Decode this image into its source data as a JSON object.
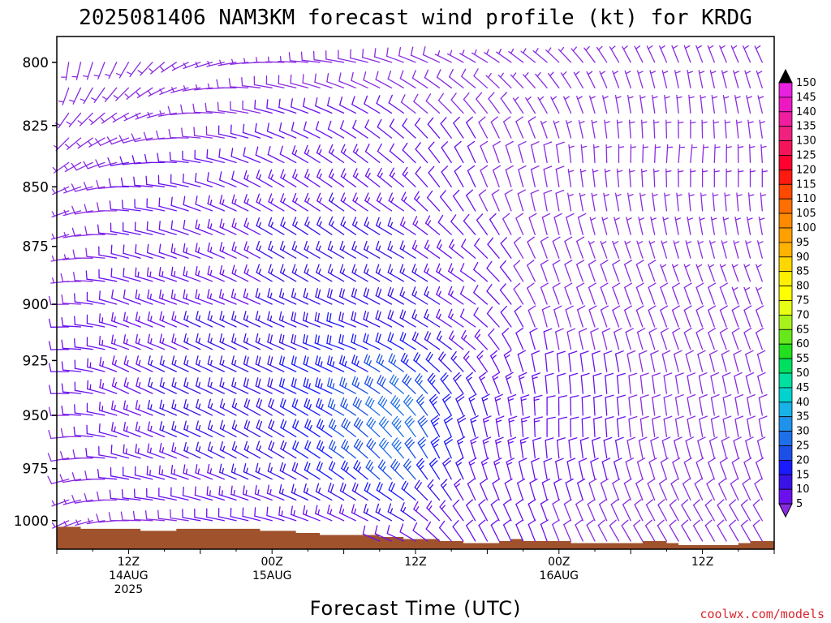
{
  "title": "2025081406 NAM3KM forecast wind profile (kt) for KRDG",
  "credit": "coolwx.com/models",
  "chart_data": {
    "type": "wind-barb time-height section",
    "title": "2025081406 NAM3KM forecast wind profile (kt) for KRDG",
    "xlabel": "Forecast Time (UTC)",
    "ylabel": "",
    "ylim": [
      1014,
      790
    ],
    "y_log_scale": true,
    "yticks": [
      800,
      825,
      850,
      875,
      900,
      925,
      950,
      975,
      1000
    ],
    "xlim_hours": [
      0,
      60
    ],
    "xticks": [
      {
        "label": "12Z",
        "sub": "14AUG",
        "sub2": "2025",
        "hour": 6
      },
      {
        "label": "00Z",
        "sub": "15AUG",
        "sub2": "",
        "hour": 18
      },
      {
        "label": "12Z",
        "sub": "",
        "sub2": "",
        "hour": 30
      },
      {
        "label": "00Z",
        "sub": "16AUG",
        "sub2": "",
        "hour": 42
      },
      {
        "label": "12Z",
        "sub": "",
        "sub2": "",
        "hour": 54
      }
    ],
    "colorbar": {
      "unit": "kt",
      "levels": [
        5,
        10,
        15,
        20,
        25,
        30,
        35,
        40,
        45,
        50,
        55,
        60,
        65,
        70,
        75,
        80,
        85,
        90,
        95,
        100,
        105,
        110,
        115,
        120,
        125,
        130,
        135,
        140,
        145,
        150
      ],
      "colors": [
        "#8a2be2",
        "#6a10ee",
        "#3b12e6",
        "#1a1aff",
        "#1b4fe6",
        "#1e6fea",
        "#1f92ec",
        "#19b2e8",
        "#00d3cd",
        "#00e0a0",
        "#00e060",
        "#22e01d",
        "#66e81a",
        "#a8f21b",
        "#e6ff14",
        "#ffff00",
        "#fff000",
        "#ffd700",
        "#ffb300",
        "#ff9f00",
        "#ff8a00",
        "#ff6e00",
        "#ff4800",
        "#ff1a10",
        "#ff0030",
        "#f5145a",
        "#f0207e",
        "#f01e9e",
        "#ee18c2",
        "#e820e0"
      ]
    },
    "terrain_color": "#a0522d",
    "surface_pressure_hpa": [
      {
        "hour": 0,
        "p": 1003
      },
      {
        "hour": 1,
        "p": 1003
      },
      {
        "hour": 2,
        "p": 1004
      },
      {
        "hour": 4,
        "p": 1004
      },
      {
        "hour": 7,
        "p": 1005
      },
      {
        "hour": 9,
        "p": 1005
      },
      {
        "hour": 10,
        "p": 1004
      },
      {
        "hour": 16,
        "p": 1004
      },
      {
        "hour": 17,
        "p": 1005
      },
      {
        "hour": 19,
        "p": 1005
      },
      {
        "hour": 20,
        "p": 1006
      },
      {
        "hour": 22,
        "p": 1007
      },
      {
        "hour": 25,
        "p": 1007
      },
      {
        "hour": 27,
        "p": 1008
      },
      {
        "hour": 29,
        "p": 1009
      },
      {
        "hour": 31,
        "p": 1009
      },
      {
        "hour": 32,
        "p": 1010
      },
      {
        "hour": 34,
        "p": 1011
      },
      {
        "hour": 37,
        "p": 1010
      },
      {
        "hour": 38,
        "p": 1009
      },
      {
        "hour": 39,
        "p": 1010
      },
      {
        "hour": 40,
        "p": 1010
      },
      {
        "hour": 43,
        "p": 1011
      },
      {
        "hour": 48,
        "p": 1011
      },
      {
        "hour": 49,
        "p": 1010
      },
      {
        "hour": 51,
        "p": 1011
      },
      {
        "hour": 52,
        "p": 1012
      },
      {
        "hour": 55,
        "p": 1012
      },
      {
        "hour": 57,
        "p": 1011
      },
      {
        "hour": 58,
        "p": 1010
      },
      {
        "hour": 60,
        "p": 1010
      }
    ],
    "levels_hpa": [
      790,
      800,
      810,
      820,
      830,
      840,
      850,
      860,
      870,
      880,
      890,
      900,
      910,
      920,
      930,
      940,
      950,
      960,
      970,
      980,
      990,
      1000,
      1010
    ],
    "hours": [
      0,
      1,
      2,
      3,
      4,
      5,
      6,
      7,
      8,
      9,
      10,
      11,
      12,
      13,
      14,
      15,
      16,
      17,
      18,
      19,
      20,
      21,
      22,
      23,
      24,
      25,
      26,
      27,
      28,
      29,
      30,
      31,
      32,
      33,
      34,
      35,
      36,
      37,
      38,
      39,
      40,
      41,
      42,
      43,
      44,
      45,
      46,
      47,
      48,
      49,
      50,
      51,
      52,
      53,
      54,
      55,
      56,
      57,
      58,
      59,
      60
    ],
    "wind_field": {
      "description": "Wind direction (deg, from) and speed (kt) at anchor times; interpolated between anchors for every hour.",
      "anchors": [
        {
          "hour": 0,
          "dir": [
            180,
            185,
            195,
            210,
            220,
            230,
            240,
            245,
            250,
            255,
            260,
            265,
            265,
            265,
            265,
            265,
            265,
            260,
            255,
            250,
            245,
            240,
            240
          ],
          "spd": [
            5,
            5,
            5,
            5,
            5,
            5,
            5,
            5,
            5,
            5,
            6,
            8,
            10,
            10,
            10,
            10,
            9,
            8,
            7,
            7,
            6,
            5,
            5
          ]
        },
        {
          "hour": 6,
          "dir": [
            200,
            210,
            225,
            240,
            250,
            260,
            270,
            275,
            280,
            285,
            285,
            290,
            290,
            290,
            295,
            295,
            290,
            290,
            285,
            280,
            275,
            270,
            270
          ],
          "spd": [
            5,
            5,
            5,
            6,
            8,
            10,
            10,
            10,
            11,
            11,
            12,
            12,
            13,
            13,
            14,
            14,
            14,
            13,
            12,
            11,
            10,
            8,
            6
          ]
        },
        {
          "hour": 12,
          "dir": [
            240,
            250,
            260,
            270,
            275,
            280,
            285,
            290,
            290,
            290,
            290,
            290,
            295,
            295,
            295,
            295,
            295,
            295,
            295,
            290,
            285,
            280,
            280
          ],
          "spd": [
            6,
            6,
            7,
            8,
            9,
            10,
            11,
            12,
            12,
            13,
            14,
            14,
            15,
            15,
            16,
            16,
            16,
            16,
            15,
            14,
            12,
            10,
            8
          ]
        },
        {
          "hour": 18,
          "dir": [
            260,
            270,
            280,
            285,
            290,
            295,
            300,
            300,
            300,
            300,
            300,
            295,
            295,
            295,
            295,
            295,
            300,
            300,
            300,
            295,
            290,
            285,
            285
          ],
          "spd": [
            6,
            7,
            8,
            10,
            11,
            12,
            13,
            14,
            15,
            15,
            15,
            15,
            16,
            17,
            18,
            18,
            18,
            18,
            17,
            16,
            14,
            12,
            10
          ]
        },
        {
          "hour": 24,
          "dir": [
            270,
            280,
            290,
            295,
            300,
            305,
            305,
            305,
            305,
            300,
            300,
            295,
            290,
            290,
            295,
            295,
            300,
            305,
            305,
            305,
            300,
            295,
            290
          ],
          "spd": [
            7,
            8,
            9,
            11,
            12,
            13,
            14,
            15,
            15,
            16,
            17,
            18,
            20,
            22,
            24,
            25,
            26,
            26,
            25,
            22,
            18,
            14,
            10
          ]
        },
        {
          "hour": 29,
          "dir": [
            280,
            290,
            300,
            305,
            310,
            310,
            310,
            305,
            300,
            300,
            300,
            300,
            300,
            300,
            305,
            310,
            315,
            320,
            320,
            315,
            305,
            300,
            295
          ],
          "spd": [
            7,
            8,
            9,
            10,
            11,
            12,
            13,
            14,
            15,
            16,
            17,
            18,
            19,
            22,
            26,
            30,
            33,
            34,
            33,
            28,
            22,
            16,
            12
          ]
        },
        {
          "hour": 35,
          "dir": [
            290,
            300,
            310,
            320,
            330,
            335,
            335,
            330,
            320,
            310,
            305,
            305,
            305,
            310,
            320,
            330,
            340,
            345,
            345,
            340,
            335,
            330,
            330
          ],
          "spd": [
            6,
            7,
            8,
            9,
            10,
            10,
            10,
            10,
            11,
            12,
            12,
            12,
            12,
            13,
            14,
            15,
            16,
            15,
            14,
            13,
            12,
            11,
            10
          ]
        },
        {
          "hour": 41,
          "dir": [
            300,
            310,
            320,
            330,
            340,
            350,
            350,
            350,
            345,
            340,
            340,
            340,
            345,
            350,
            355,
            355,
            0,
            0,
            355,
            350,
            345,
            340,
            340
          ],
          "spd": [
            5,
            5,
            6,
            6,
            7,
            8,
            8,
            8,
            8,
            8,
            8,
            8,
            9,
            10,
            11,
            12,
            12,
            12,
            12,
            12,
            11,
            10,
            10
          ]
        },
        {
          "hour": 47,
          "dir": [
            320,
            330,
            340,
            350,
            355,
            0,
            355,
            350,
            345,
            340,
            340,
            340,
            340,
            345,
            350,
            355,
            355,
            355,
            350,
            345,
            340,
            335,
            330
          ],
          "spd": [
            5,
            5,
            5,
            6,
            6,
            6,
            6,
            6,
            7,
            7,
            8,
            8,
            9,
            9,
            10,
            10,
            10,
            10,
            10,
            10,
            9,
            9,
            8
          ]
        },
        {
          "hour": 53,
          "dir": [
            330,
            340,
            350,
            355,
            0,
            5,
            0,
            355,
            350,
            345,
            340,
            340,
            340,
            340,
            345,
            350,
            350,
            350,
            345,
            340,
            335,
            330,
            330
          ],
          "spd": [
            5,
            5,
            5,
            5,
            5,
            6,
            6,
            6,
            7,
            7,
            7,
            8,
            8,
            9,
            9,
            9,
            9,
            9,
            9,
            9,
            8,
            8,
            8
          ]
        },
        {
          "hour": 60,
          "dir": [
            330,
            335,
            340,
            345,
            350,
            355,
            0,
            355,
            350,
            345,
            340,
            340,
            340,
            340,
            345,
            345,
            350,
            350,
            345,
            340,
            335,
            330,
            330
          ],
          "spd": [
            5,
            5,
            5,
            5,
            5,
            5,
            6,
            6,
            6,
            7,
            7,
            7,
            8,
            8,
            8,
            8,
            8,
            8,
            8,
            8,
            8,
            8,
            8
          ]
        }
      ]
    }
  }
}
